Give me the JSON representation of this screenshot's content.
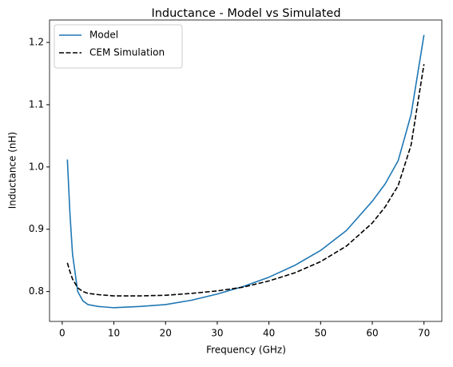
{
  "chart_data": {
    "type": "line",
    "title": "Inductance - Model vs Simulated",
    "x_label": "Frequency (GHz)",
    "y_label": "Inductance (nH)",
    "x": [
      1,
      1.5,
      2,
      3,
      4,
      5,
      7,
      10,
      15,
      20,
      25,
      30,
      35,
      40,
      45,
      50,
      55,
      60,
      62.5,
      65,
      67.5,
      70
    ],
    "series": [
      {
        "name": "Model",
        "color": "#1f77b4",
        "dash": "solid",
        "values": [
          1.012,
          0.925,
          0.86,
          0.8,
          0.785,
          0.779,
          0.776,
          0.774,
          0.776,
          0.779,
          0.786,
          0.796,
          0.808,
          0.823,
          0.842,
          0.866,
          0.898,
          0.945,
          0.973,
          1.01,
          1.084,
          1.212
        ]
      },
      {
        "name": "CEM Simulation",
        "color": "#000000",
        "dash": "dashed",
        "values": [
          0.846,
          0.832,
          0.82,
          0.806,
          0.8,
          0.797,
          0.795,
          0.793,
          0.793,
          0.794,
          0.797,
          0.801,
          0.807,
          0.817,
          0.83,
          0.848,
          0.873,
          0.91,
          0.936,
          0.97,
          1.035,
          1.165
        ]
      }
    ],
    "xlim": [
      -2.45,
      73.45
    ],
    "ylim": [
      0.752,
      1.236
    ],
    "xticks": [
      0,
      10,
      20,
      30,
      40,
      50,
      60,
      70
    ],
    "yticks": [
      0.8,
      0.9,
      {
        "value": 1,
        "label": "1.0"
      },
      1.1,
      1.2
    ],
    "grid": false,
    "legend_loc": "upper-left"
  }
}
